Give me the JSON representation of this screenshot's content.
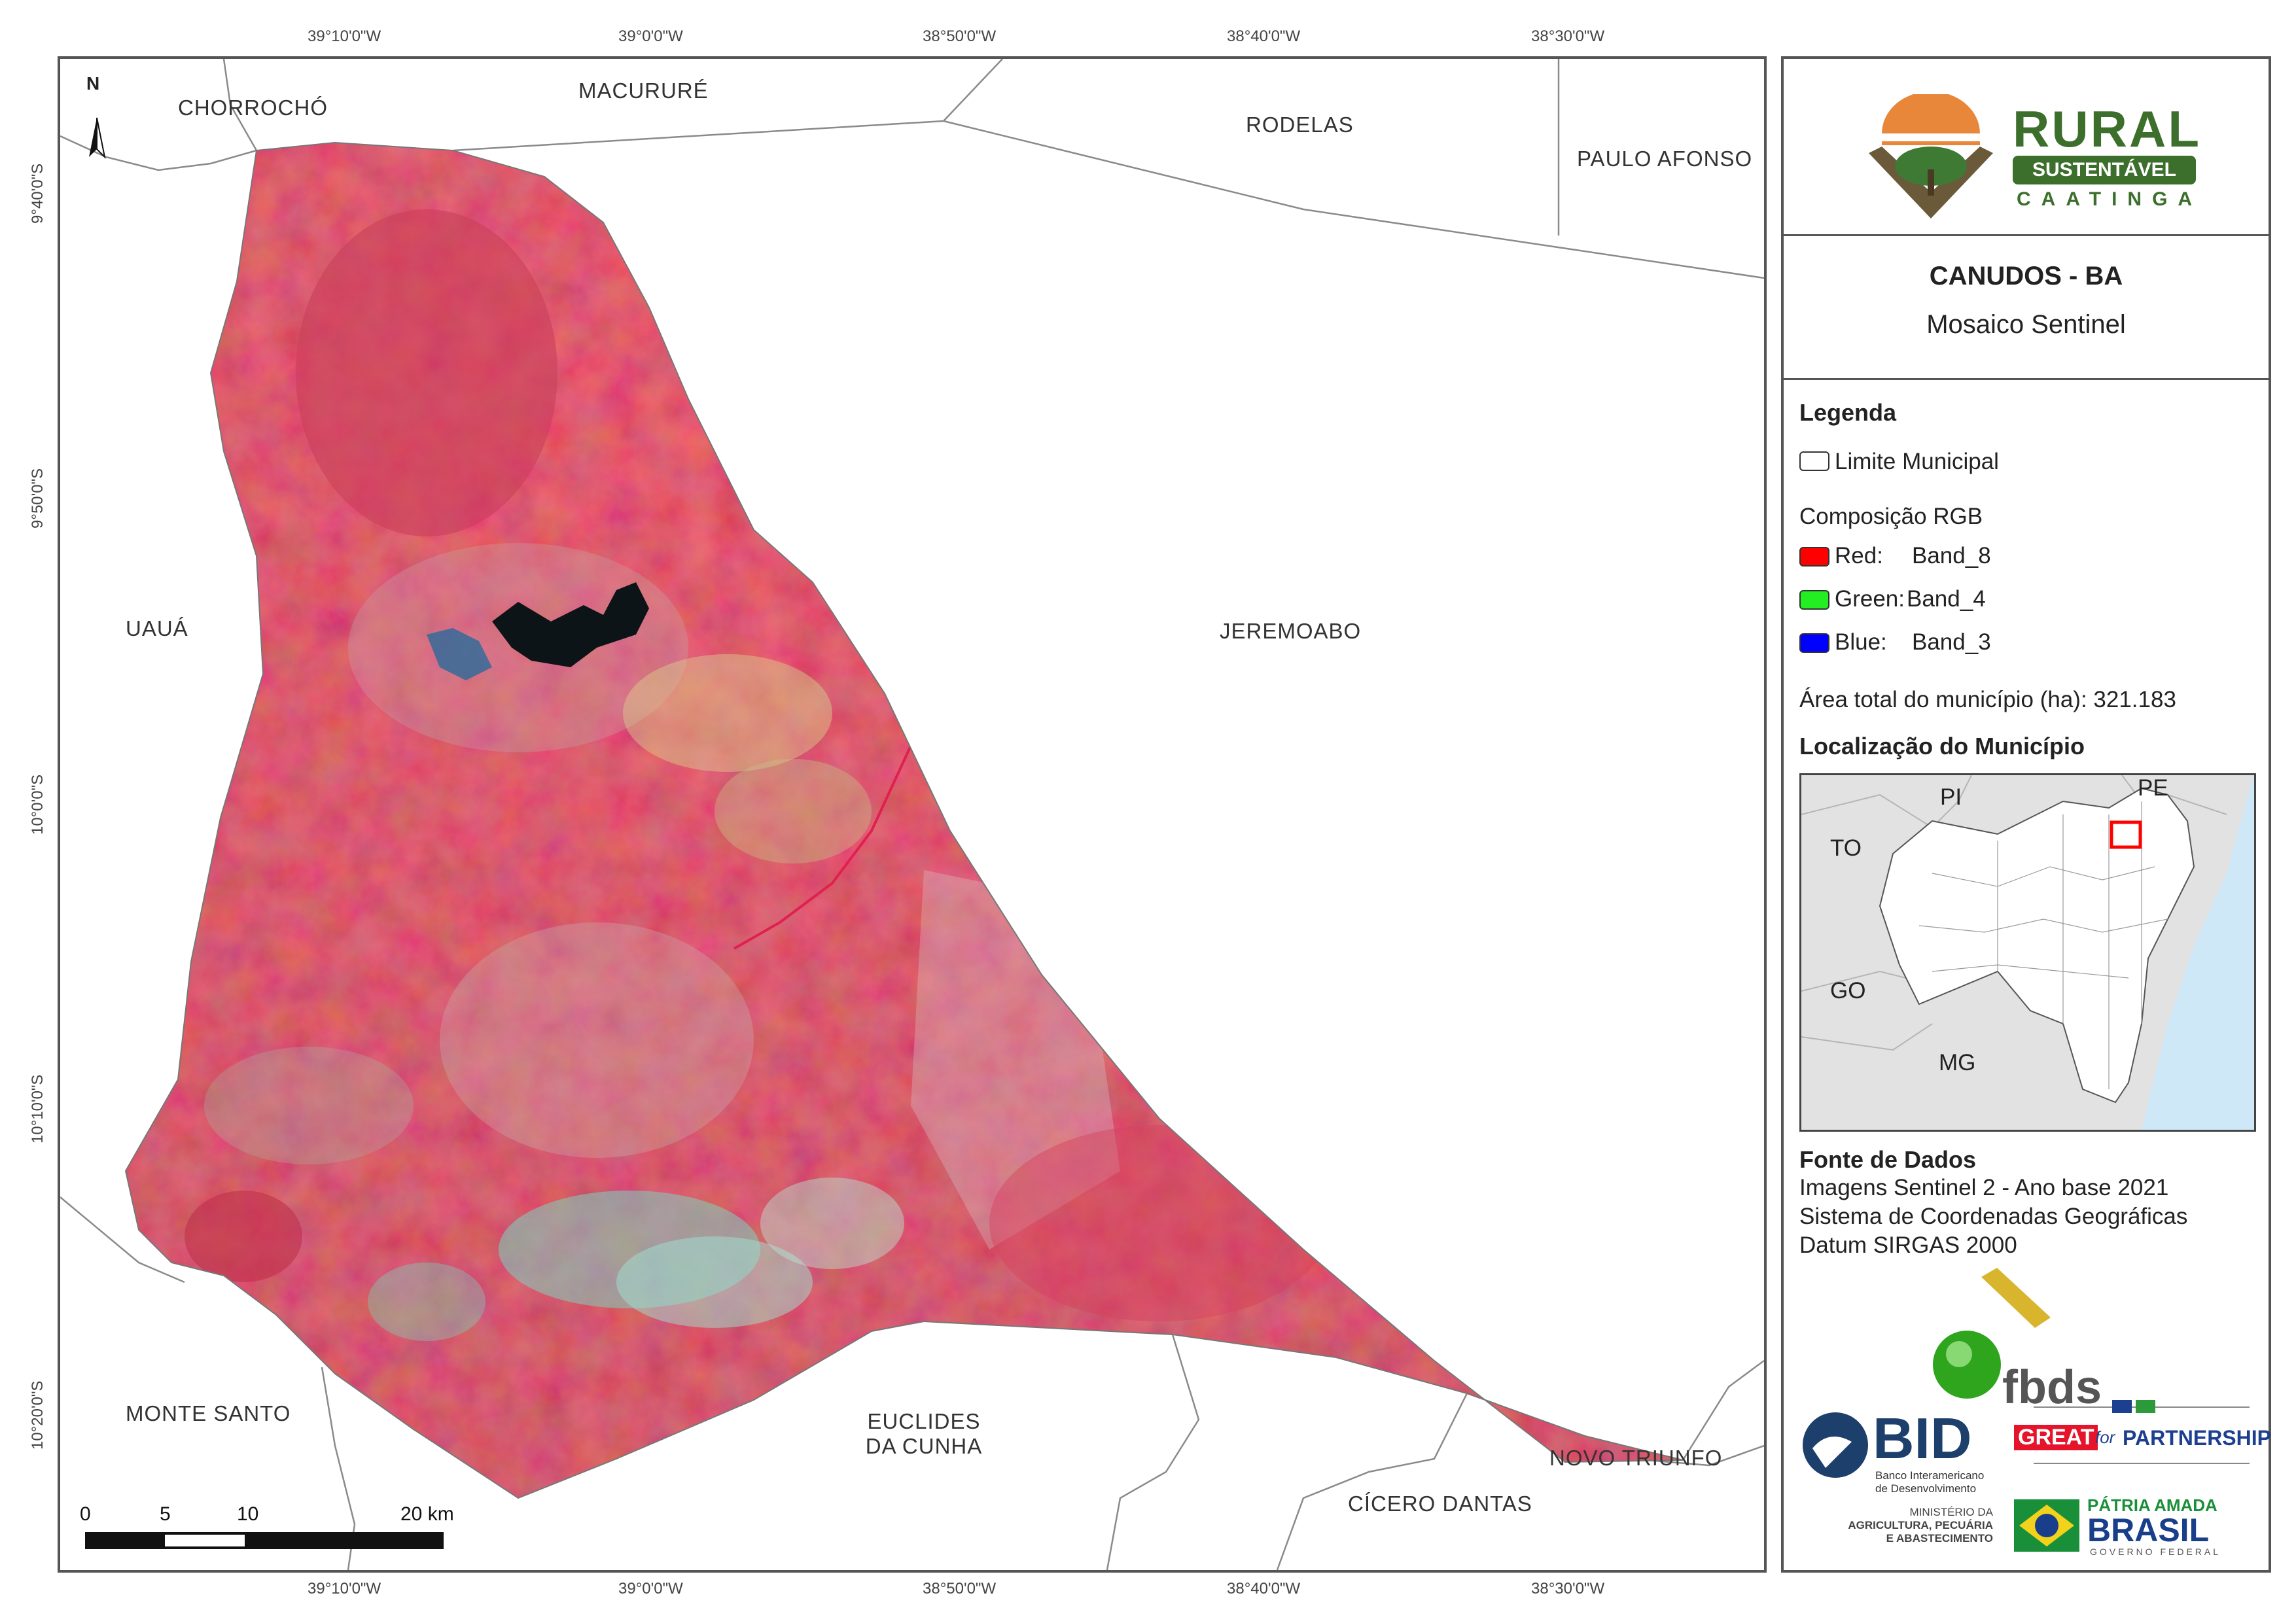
{
  "graticule": {
    "top": [
      "39°10'0\"W",
      "39°0'0\"W",
      "38°50'0\"W",
      "38°40'0\"W",
      "38°30'0\"W"
    ],
    "bottom": [
      "39°10'0\"W",
      "39°0'0\"W",
      "38°50'0\"W",
      "38°40'0\"W",
      "38°30'0\"W"
    ],
    "left": [
      "9°40'0\"S",
      "9°50'0\"S",
      "10°0'0\"S",
      "10°10'0\"S",
      "10°20'0\"S"
    ]
  },
  "map": {
    "north_arrow": "N",
    "places": {
      "chorrocho": "CHORROCHÓ",
      "macurure": "MACURURÉ",
      "rodelas": "RODELAS",
      "paulo_afonso": "PAULO AFONSO",
      "uaua": "UAUÁ",
      "jeremoabo": "JEREMOABO",
      "monte_santo": "MONTE SANTO",
      "euclides_1": "EUCLIDES",
      "euclides_2": "DA CUNHA",
      "novo_triunfo": "NOVO TRIUNFO",
      "cicero_dantas": "CÍCERO DANTAS"
    },
    "scale": {
      "labels": [
        "0",
        "5",
        "10",
        "20 km"
      ]
    }
  },
  "panel": {
    "logo": {
      "line1": "RURAL",
      "line2": "SUSTENTÁVEL",
      "line3": "CAATINGA"
    },
    "title": "CANUDOS - BA",
    "subtitle": "Mosaico Sentinel",
    "legend": {
      "heading": "Legenda",
      "limit_label": "Limite Municipal",
      "rgb_heading": "Composição RGB",
      "red": {
        "label": "Red:",
        "band": "Band_8",
        "color": "#ff0000"
      },
      "green": {
        "label": "Green:",
        "band": "Band_4",
        "color": "#22ee22"
      },
      "blue": {
        "label": "Blue:",
        "band": "Band_3",
        "color": "#0000ff"
      },
      "area": "Área total do município (ha): 321.183"
    },
    "location": {
      "heading": "Localização do Município",
      "states": {
        "pi": "PI",
        "pe": "PE",
        "to": "TO",
        "go": "GO",
        "mg": "MG"
      }
    },
    "source": {
      "heading": "Fonte de Dados",
      "line1": "Imagens Sentinel 2 - Ano base 2021",
      "line2": "Sistema de Coordenadas Geográficas",
      "line3": "Datum SIRGAS 2000"
    },
    "partners": {
      "fbds": "fbds",
      "bid": "BID",
      "bid_sub1": "Banco Interamericano",
      "bid_sub2": "de Desenvolvimento",
      "great_a": "GREAT",
      "great_b": "for",
      "great_c": "PARTNERSHIP",
      "ministerio1": "MINISTÉRIO DA",
      "ministerio2": "AGRICULTURA, PECUÁRIA",
      "ministerio3": "E ABASTECIMENTO",
      "patria1": "PÁTRIA AMADA",
      "patria2": "BRASIL",
      "patria3": "GOVERNO FEDERAL"
    }
  }
}
